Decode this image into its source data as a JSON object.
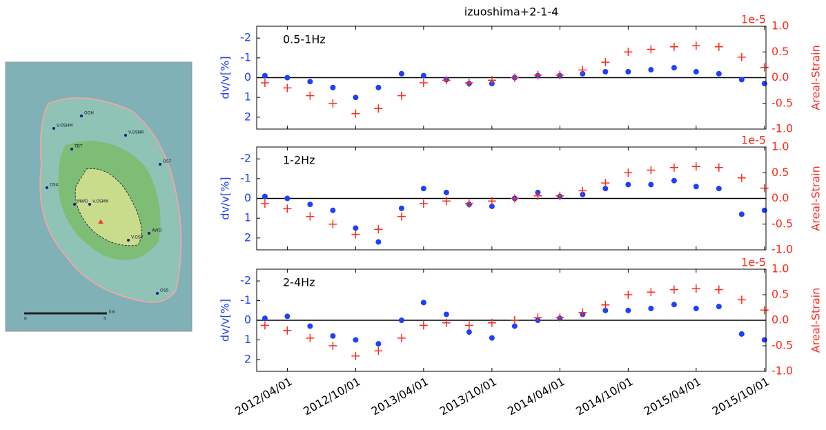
{
  "map": {
    "stations": [
      "OGH",
      "V.OSHM",
      "V.OSNR",
      "TBT",
      "OS7",
      "OS4",
      "MWD",
      "V.OSMA",
      "AWD",
      "V.OS7",
      "OS5"
    ],
    "scale": [
      "0",
      "5",
      "km"
    ]
  },
  "chart_data": [
    {
      "type": "scatter",
      "title": "izuoshima+2-1-4",
      "label": "0.5-1Hz",
      "ylabel": "dv/v[%]",
      "y2label": "Areal-Strain",
      "y2_offset_label": "1e-5",
      "x": [
        "2012/02/01",
        "2012/04/01",
        "2012/06/01",
        "2012/08/01",
        "2012/10/01",
        "2012/12/01",
        "2013/02/01",
        "2013/04/01",
        "2013/06/01",
        "2013/08/01",
        "2013/10/01",
        "2013/12/01",
        "2014/02/01",
        "2014/04/01",
        "2014/06/01",
        "2014/08/01",
        "2014/10/01",
        "2014/12/01",
        "2015/02/01",
        "2015/04/01",
        "2015/06/01",
        "2015/08/01",
        "2015/10/01"
      ],
      "xlim": [
        "2012/01/10",
        "2015/10/05"
      ],
      "ylim": [
        2.6,
        -2.6
      ],
      "yticks": [
        -2,
        -1,
        0,
        1,
        2
      ],
      "hline": 0,
      "y2lim": [
        -1.0,
        1.0
      ],
      "y2ticks": [
        {
          "value": 1,
          "label": "1.0"
        },
        {
          "value": 0.5,
          "label": "0.5"
        },
        {
          "value": 0,
          "label": "0.0"
        },
        {
          "value": -0.5,
          "label": "-0.5"
        },
        {
          "value": -1,
          "label": "-1.0"
        }
      ],
      "series": [
        {
          "color": "#1f3fff",
          "marker": "dot",
          "values": [
            -0.1,
            0,
            0.2,
            0.5,
            1.0,
            0.5,
            -0.2,
            -0.1,
            0.1,
            0.3,
            0.3,
            0,
            -0.1,
            -0.1,
            -0.2,
            -0.3,
            -0.3,
            -0.4,
            -0.5,
            -0.3,
            -0.2,
            0.1,
            0.3
          ]
        },
        {
          "color": "#ff2a1a",
          "marker": "plus",
          "axis": "y2",
          "values": [
            -0.1,
            -0.2,
            -0.35,
            -0.5,
            -0.7,
            -0.6,
            -0.35,
            -0.1,
            -0.05,
            -0.1,
            -0.05,
            0,
            0.05,
            0.05,
            0.15,
            0.3,
            0.5,
            0.55,
            0.6,
            0.62,
            0.6,
            0.4,
            0.2
          ]
        }
      ]
    },
    {
      "type": "scatter",
      "label": "1-2Hz",
      "ylabel": "dv/v[%]",
      "y2label": "Areal-Strain",
      "y2_offset_label": "1e-5",
      "x": [
        "2012/02/01",
        "2012/04/01",
        "2012/06/01",
        "2012/08/01",
        "2012/10/01",
        "2012/12/01",
        "2013/02/01",
        "2013/04/01",
        "2013/06/01",
        "2013/08/01",
        "2013/10/01",
        "2013/12/01",
        "2014/02/01",
        "2014/04/01",
        "2014/06/01",
        "2014/08/01",
        "2014/10/01",
        "2014/12/01",
        "2015/02/01",
        "2015/04/01",
        "2015/06/01",
        "2015/08/01",
        "2015/10/01"
      ],
      "xlim": [
        "2012/01/10",
        "2015/10/05"
      ],
      "ylim": [
        2.6,
        -2.6
      ],
      "yticks": [
        -2,
        -1,
        0,
        1,
        2
      ],
      "hline": 0,
      "y2lim": [
        -1.0,
        1.0
      ],
      "y2ticks": [
        {
          "value": 1,
          "label": "1.0"
        },
        {
          "value": 0.5,
          "label": "0.5"
        },
        {
          "value": 0,
          "label": "0.0"
        },
        {
          "value": -0.5,
          "label": "-0.5"
        },
        {
          "value": -1,
          "label": "-1.0"
        }
      ],
      "series": [
        {
          "color": "#1f3fff",
          "marker": "dot",
          "values": [
            -0.1,
            0,
            0.3,
            0.6,
            1.5,
            2.2,
            0.5,
            -0.5,
            -0.3,
            0.3,
            0.4,
            0,
            -0.3,
            -0.1,
            -0.2,
            -0.5,
            -0.7,
            -0.7,
            -0.9,
            -0.6,
            -0.5,
            0.8,
            0.6
          ]
        },
        {
          "color": "#ff2a1a",
          "marker": "plus",
          "axis": "y2",
          "values": [
            -0.1,
            -0.2,
            -0.35,
            -0.5,
            -0.7,
            -0.6,
            -0.35,
            -0.1,
            -0.05,
            -0.1,
            -0.05,
            0,
            0.05,
            0.05,
            0.15,
            0.3,
            0.5,
            0.55,
            0.6,
            0.62,
            0.6,
            0.4,
            0.2
          ]
        }
      ]
    },
    {
      "type": "scatter",
      "label": "2-4Hz",
      "ylabel": "dv/v[%]",
      "y2label": "Areal-Strain",
      "y2_offset_label": "1e-5",
      "x": [
        "2012/02/01",
        "2012/04/01",
        "2012/06/01",
        "2012/08/01",
        "2012/10/01",
        "2012/12/01",
        "2013/02/01",
        "2013/04/01",
        "2013/06/01",
        "2013/08/01",
        "2013/10/01",
        "2013/12/01",
        "2014/02/01",
        "2014/04/01",
        "2014/06/01",
        "2014/08/01",
        "2014/10/01",
        "2014/12/01",
        "2015/02/01",
        "2015/04/01",
        "2015/06/01",
        "2015/08/01",
        "2015/10/01"
      ],
      "xlim": [
        "2012/01/10",
        "2015/10/05"
      ],
      "xticks": [
        "2012/04/01",
        "2012/10/01",
        "2013/04/01",
        "2013/10/01",
        "2014/04/01",
        "2014/10/01",
        "2015/04/01",
        "2015/10/01"
      ],
      "ylim": [
        2.6,
        -2.6
      ],
      "yticks": [
        -2,
        -1,
        0,
        1,
        2
      ],
      "hline": 0,
      "y2lim": [
        -1.0,
        1.0
      ],
      "y2ticks": [
        {
          "value": 1,
          "label": "1.0"
        },
        {
          "value": 0.5,
          "label": "0.5"
        },
        {
          "value": 0,
          "label": "0.0"
        },
        {
          "value": -0.5,
          "label": "-0.5"
        },
        {
          "value": -1,
          "label": "-1.0"
        }
      ],
      "series": [
        {
          "color": "#1f3fff",
          "marker": "dot",
          "values": [
            -0.1,
            -0.2,
            0.3,
            0.8,
            1.0,
            1.2,
            0,
            -0.9,
            -0.3,
            0.6,
            0.9,
            0.3,
            0,
            -0.1,
            -0.3,
            -0.5,
            -0.5,
            -0.6,
            -0.8,
            -0.6,
            -0.7,
            0.7,
            1.0
          ]
        },
        {
          "color": "#ff2a1a",
          "marker": "plus",
          "axis": "y2",
          "values": [
            -0.1,
            -0.2,
            -0.35,
            -0.5,
            -0.7,
            -0.6,
            -0.35,
            -0.1,
            -0.05,
            -0.1,
            -0.05,
            0,
            0.05,
            0.05,
            0.15,
            0.3,
            0.5,
            0.55,
            0.6,
            0.62,
            0.6,
            0.4,
            0.2
          ]
        }
      ]
    }
  ]
}
